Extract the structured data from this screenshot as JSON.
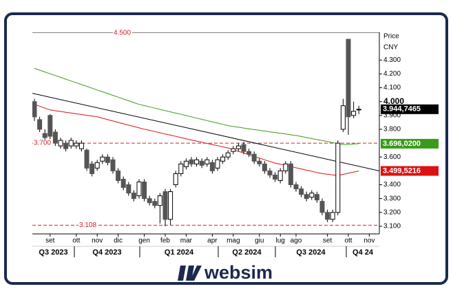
{
  "chart_data": {
    "type": "candlestick",
    "axis_title": "Price",
    "axis_unit": "CNY",
    "categories": [
      null,
      null,
      null,
      "set",
      null,
      null,
      null,
      null,
      "ott",
      null,
      null,
      null,
      "nov",
      null,
      null,
      null,
      "dic",
      null,
      null,
      null,
      null,
      "gen",
      null,
      null,
      null,
      "feb",
      null,
      null,
      null,
      "mar",
      null,
      null,
      null,
      null,
      "apr",
      null,
      null,
      null,
      "mag",
      null,
      null,
      null,
      null,
      "giu",
      null,
      null,
      null,
      "lug",
      null,
      null,
      "ago",
      null,
      null,
      null,
      null,
      null,
      "set",
      null,
      null,
      null,
      "ott",
      null,
      null,
      null,
      "nov"
    ],
    "open": [
      4.0,
      3.87,
      3.77,
      3.9,
      3.78,
      3.68,
      3.7,
      3.68,
      3.68,
      3.66,
      3.65,
      3.55,
      3.52,
      3.57,
      3.6,
      3.58,
      3.5,
      3.44,
      3.4,
      3.34,
      3.32,
      3.42,
      3.3,
      3.28,
      3.25,
      3.35,
      3.15,
      3.4,
      3.48,
      3.53,
      3.58,
      3.55,
      3.57,
      3.55,
      3.56,
      3.52,
      3.57,
      3.6,
      3.64,
      3.66,
      3.69,
      3.64,
      3.62,
      3.57,
      3.55,
      3.5,
      3.47,
      3.43,
      3.5,
      3.55,
      3.4,
      3.37,
      3.33,
      3.31,
      3.33,
      3.28,
      3.2,
      3.15,
      3.2,
      3.8,
      4.45,
      3.9,
      3.94,
      null,
      null
    ],
    "high": [
      4.02,
      3.89,
      3.8,
      3.91,
      3.8,
      3.74,
      3.72,
      3.74,
      3.72,
      3.72,
      3.66,
      3.57,
      3.58,
      3.62,
      3.62,
      3.6,
      3.52,
      3.46,
      3.42,
      3.36,
      3.44,
      3.44,
      3.32,
      3.3,
      3.34,
      3.37,
      3.37,
      3.5,
      3.57,
      3.59,
      3.6,
      3.6,
      3.59,
      3.6,
      3.58,
      3.6,
      3.62,
      3.65,
      3.68,
      3.7,
      3.71,
      3.66,
      3.64,
      3.59,
      3.57,
      3.52,
      3.49,
      3.52,
      3.57,
      3.57,
      3.42,
      3.39,
      3.35,
      3.36,
      3.35,
      3.3,
      3.22,
      3.22,
      3.72,
      4.02,
      4.45,
      4.0,
      3.97,
      null,
      null
    ],
    "low": [
      3.86,
      3.78,
      3.72,
      3.73,
      3.68,
      3.66,
      3.64,
      3.66,
      3.66,
      3.64,
      3.5,
      3.46,
      3.5,
      3.55,
      3.54,
      3.48,
      3.41,
      3.36,
      3.32,
      3.28,
      3.3,
      3.28,
      3.25,
      3.23,
      3.12,
      3.1,
      3.11,
      3.38,
      3.46,
      3.51,
      3.53,
      3.53,
      3.52,
      3.53,
      3.48,
      3.5,
      3.55,
      3.58,
      3.62,
      3.64,
      3.62,
      3.6,
      3.55,
      3.53,
      3.48,
      3.45,
      3.42,
      3.41,
      3.48,
      3.38,
      3.35,
      3.31,
      3.28,
      3.29,
      3.27,
      3.18,
      3.13,
      3.13,
      3.18,
      3.78,
      3.76,
      3.88,
      3.91,
      null,
      null
    ],
    "close": [
      3.89,
      3.8,
      3.74,
      3.75,
      3.7,
      3.72,
      3.66,
      3.72,
      3.7,
      3.7,
      3.52,
      3.48,
      3.56,
      3.6,
      3.56,
      3.5,
      3.43,
      3.38,
      3.34,
      3.3,
      3.42,
      3.3,
      3.27,
      3.25,
      3.32,
      3.15,
      3.35,
      3.48,
      3.55,
      3.57,
      3.55,
      3.58,
      3.54,
      3.58,
      3.5,
      3.58,
      3.6,
      3.63,
      3.66,
      3.68,
      3.64,
      3.62,
      3.57,
      3.55,
      3.5,
      3.47,
      3.44,
      3.5,
      3.55,
      3.4,
      3.37,
      3.33,
      3.3,
      3.34,
      3.29,
      3.2,
      3.15,
      3.2,
      3.7,
      3.97,
      3.89,
      3.93,
      3.9447465,
      null,
      null
    ],
    "close_label": "3.944,7465",
    "close_label_color": "#000000",
    "up_color": "#ffffff",
    "down_color": "#555555",
    "overlays": [
      {
        "color": "#3a9a1a",
        "label": "3.696,0200",
        "values": [
          4.24,
          4.227,
          4.214,
          4.201,
          4.188,
          4.175,
          4.162,
          4.149,
          4.136,
          4.123,
          4.11,
          4.097,
          4.084,
          4.071,
          4.058,
          4.045,
          4.032,
          4.019,
          4.006,
          3.993,
          3.98,
          3.971,
          3.962,
          3.953,
          3.944,
          3.935,
          3.926,
          3.917,
          3.908,
          3.899,
          3.89,
          3.881,
          3.872,
          3.863,
          3.854,
          3.845,
          3.836,
          3.827,
          3.82,
          3.815,
          3.809,
          3.804,
          3.798,
          3.793,
          3.788,
          3.782,
          3.777,
          3.771,
          3.766,
          3.76,
          3.755,
          3.748,
          3.74,
          3.733,
          3.726,
          3.719,
          3.712,
          3.704,
          3.697,
          3.69,
          3.692,
          3.694,
          3.69602,
          null,
          null
        ]
      },
      {
        "color": "#dd1111",
        "label": "3.499,5216",
        "values": [
          3.98,
          3.967,
          3.953,
          3.94,
          3.934,
          3.929,
          3.923,
          3.918,
          3.912,
          3.907,
          3.901,
          3.896,
          3.89,
          3.88,
          3.87,
          3.86,
          3.85,
          3.84,
          3.83,
          3.82,
          3.81,
          3.801,
          3.793,
          3.784,
          3.775,
          3.766,
          3.758,
          3.749,
          3.74,
          3.732,
          3.723,
          3.715,
          3.707,
          3.698,
          3.69,
          3.682,
          3.673,
          3.665,
          3.653,
          3.641,
          3.629,
          3.617,
          3.604,
          3.592,
          3.58,
          3.568,
          3.556,
          3.548,
          3.539,
          3.531,
          3.522,
          3.514,
          3.505,
          3.497,
          3.488,
          3.48,
          3.476,
          3.471,
          3.467,
          3.475,
          3.483,
          3.491,
          3.4995216,
          null,
          null
        ]
      }
    ],
    "trendline": {
      "color": "#000000",
      "values": [
        4.06,
        3.5
      ]
    },
    "levels": [
      {
        "value": 4.5,
        "label": "4.500",
        "color": "#000000",
        "dashed": false
      },
      {
        "value": 3.7,
        "label": "3.700",
        "color": "#d42020",
        "dashed": true
      },
      {
        "value": 3.108,
        "label": "3.108",
        "color": "#d42020",
        "dashed": true
      }
    ],
    "quarters": [
      "Q3 2023",
      "Q4 2023",
      "Q1 2024",
      "Q2 2024",
      "Q3 2024",
      "Q4 24"
    ],
    "ylim": [
      3.045,
      4.5
    ],
    "yticks": [
      {
        "value": 3.1,
        "label": "3.100"
      },
      {
        "value": 3.2,
        "label": "3.200"
      },
      {
        "value": 3.3,
        "label": "3.300"
      },
      {
        "value": 3.4,
        "label": "3.400"
      },
      {
        "value": 3.6,
        "label": "3.600"
      },
      {
        "value": 3.8,
        "label": "3.800"
      },
      {
        "value": 3.9,
        "label": "3.900"
      },
      {
        "value": 4.0,
        "label": "4.000"
      },
      {
        "value": 4.1,
        "label": "4.100"
      },
      {
        "value": 4.2,
        "label": "4.200"
      },
      {
        "value": 4.3,
        "label": "4.300"
      }
    ]
  },
  "footer": {
    "brand": "websim"
  }
}
